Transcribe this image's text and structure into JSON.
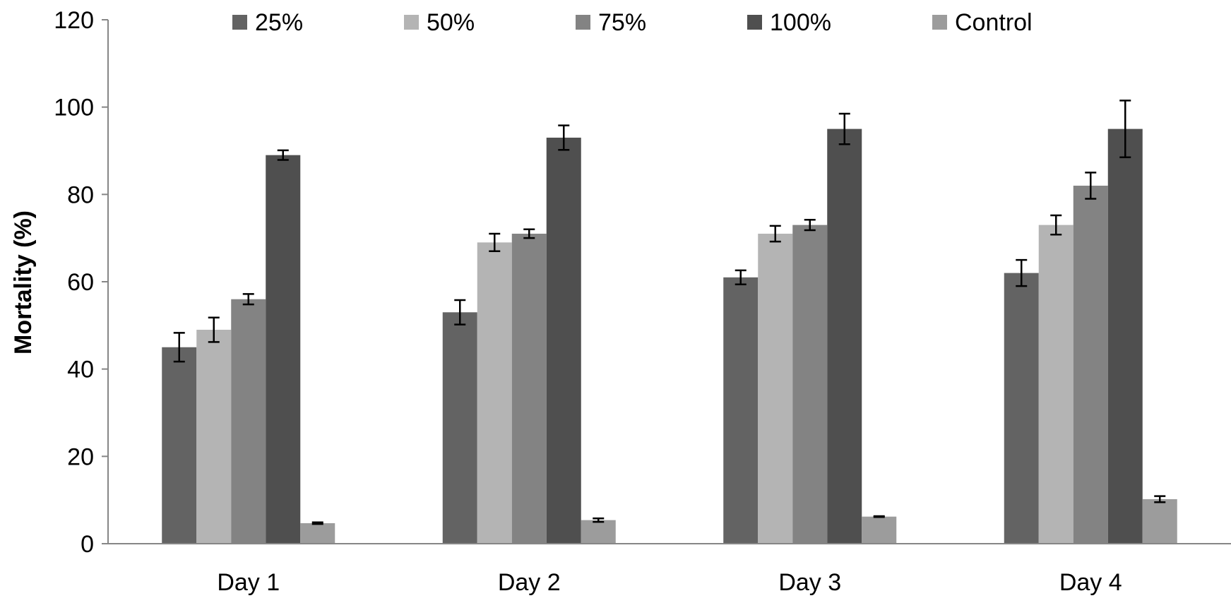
{
  "chart_data": {
    "type": "bar",
    "ylabel": "Mortality (%)",
    "xlabel": "",
    "ylim": [
      0,
      120
    ],
    "yticks": [
      "0",
      "20",
      "40",
      "60",
      "80",
      "100",
      "120"
    ],
    "categories": [
      "Day 1",
      "Day 2",
      "Day 3",
      "Day 4"
    ],
    "legend_position": "top",
    "grid": false,
    "series": [
      {
        "name": "25%",
        "color": "#636363",
        "values": [
          45,
          53,
          61,
          62
        ],
        "errors": [
          3.3,
          2.8,
          1.6,
          3.0
        ]
      },
      {
        "name": "50%",
        "color": "#b4b4b4",
        "values": [
          49,
          69,
          71,
          73
        ],
        "errors": [
          2.8,
          2.0,
          1.8,
          2.2
        ]
      },
      {
        "name": "75%",
        "color": "#838383",
        "values": [
          56,
          71,
          73,
          82
        ],
        "errors": [
          1.2,
          1.0,
          1.2,
          3.0
        ]
      },
      {
        "name": "100%",
        "color": "#4f4f4f",
        "values": [
          89,
          93,
          95,
          95
        ],
        "errors": [
          1.1,
          2.8,
          3.5,
          6.5
        ]
      },
      {
        "name": "Control",
        "color": "#9c9c9c",
        "values": [
          4.7,
          5.4,
          6.2,
          10.2
        ],
        "errors": [
          0.2,
          0.4,
          0.1,
          0.7
        ]
      }
    ]
  }
}
